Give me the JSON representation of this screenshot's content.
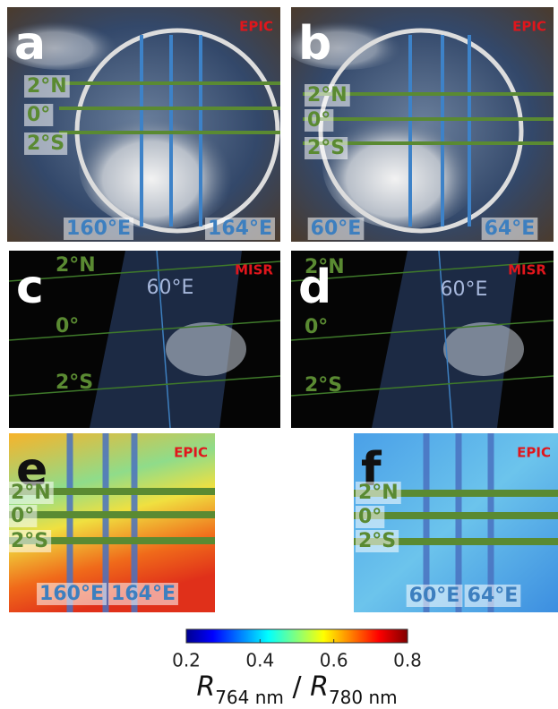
{
  "panels": [
    {
      "letter": "a",
      "source": "EPIC",
      "lat_labels": [
        "2°N",
        "0°",
        "2°S"
      ],
      "lon_labels": [
        "160°E",
        "164°E"
      ]
    },
    {
      "letter": "b",
      "source": "EPIC",
      "lat_labels": [
        "2°N",
        "0°",
        "2°S"
      ],
      "lon_labels": [
        "60°E",
        "64°E"
      ]
    },
    {
      "letter": "c",
      "source": "MISR",
      "lat_labels": [
        "2°N",
        "0°",
        "2°S"
      ],
      "lon_labels": [
        "60°E"
      ]
    },
    {
      "letter": "d",
      "source": "MISR",
      "lat_labels": [
        "2°N",
        "0°",
        "2°S"
      ],
      "lon_labels": [
        "60°E"
      ]
    },
    {
      "letter": "e",
      "source": "EPIC",
      "lat_labels": [
        "2°N",
        "0°",
        "2°S"
      ],
      "lon_labels": [
        "160°E",
        "164°E"
      ]
    },
    {
      "letter": "f",
      "source": "EPIC",
      "lat_labels": [
        "2°N",
        "0°",
        "2°S"
      ],
      "lon_labels": [
        "60°E",
        "64°E"
      ]
    }
  ],
  "colorbar": {
    "range": [
      0.2,
      0.8
    ],
    "ticks": [
      0.2,
      0.4,
      0.6,
      0.8
    ],
    "label": {
      "symbol_1": "R",
      "subscript_1": "764 nm",
      "separator": " / ",
      "symbol_2": "R",
      "subscript_2": "780 nm"
    }
  }
}
